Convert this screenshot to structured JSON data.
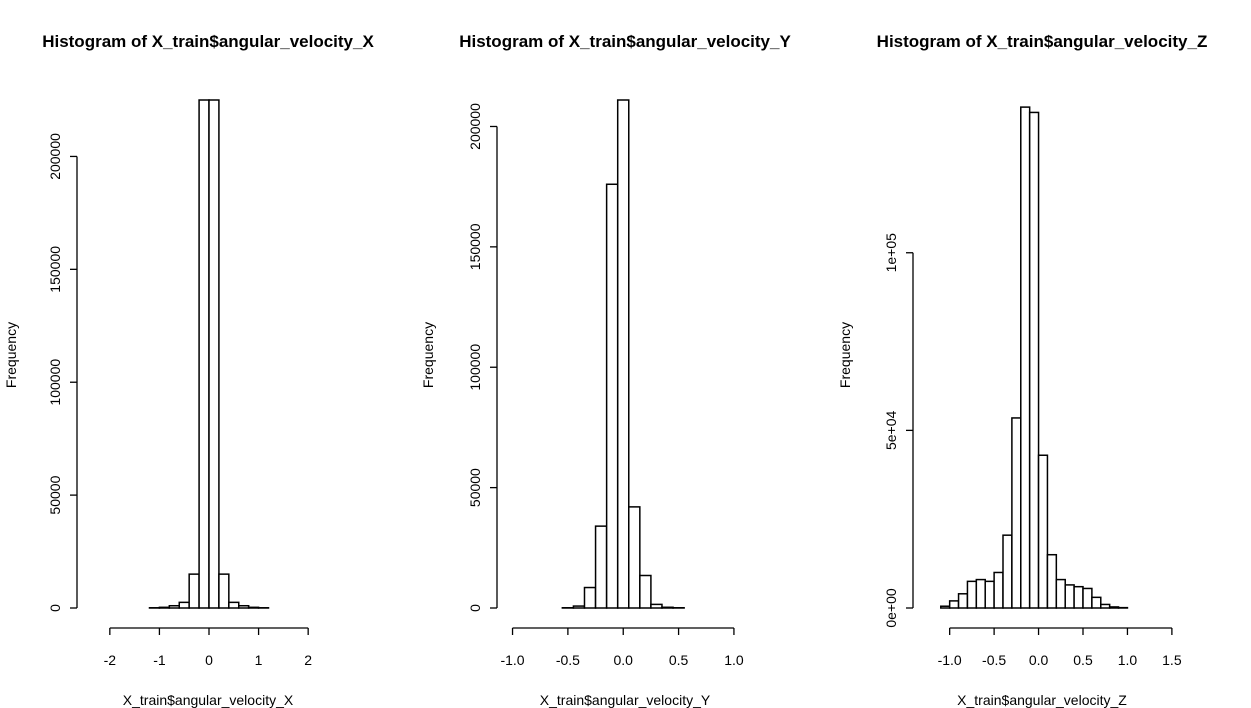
{
  "chart_data": [
    {
      "type": "bar",
      "title": "Histogram of X_train$angular_velocity_X",
      "xlabel": "X_train$angular_velocity_X",
      "ylabel": "Frequency",
      "xlim": [
        -2.4,
        2.4
      ],
      "ylim": [
        0,
        225000
      ],
      "x_ticks": [
        -2,
        -1,
        0,
        1,
        2
      ],
      "x_tick_labels": [
        "-2",
        "-1",
        "0",
        "1",
        "2"
      ],
      "y_ticks": [
        0,
        50000,
        100000,
        150000,
        200000
      ],
      "y_tick_labels": [
        "0",
        "50000",
        "100000",
        "150000",
        "200000"
      ],
      "bin_edges": [
        -2.4,
        -2.2,
        -2.0,
        -1.8,
        -1.6,
        -1.4,
        -1.2,
        -1.0,
        -0.8,
        -0.6,
        -0.4,
        -0.2,
        0.0,
        0.2,
        0.4,
        0.6,
        0.8,
        1.0,
        1.2,
        1.4,
        1.6,
        1.8,
        2.0,
        2.2,
        2.4
      ],
      "values": [
        0,
        0,
        0,
        0,
        0,
        0,
        100,
        300,
        1000,
        2500,
        15000,
        225000,
        225000,
        15000,
        2500,
        1000,
        300,
        100,
        0,
        0,
        0,
        0,
        0,
        0
      ],
      "grid": false
    },
    {
      "type": "bar",
      "title": "Histogram of X_train$angular_velocity_Y",
      "xlabel": "X_train$angular_velocity_Y",
      "ylabel": "Frequency",
      "xlim": [
        -1.05,
        1.1
      ],
      "ylim": [
        0,
        211000
      ],
      "x_ticks": [
        -1.0,
        -0.5,
        0.0,
        0.5,
        1.0
      ],
      "x_tick_labels": [
        "-1.0",
        "-0.5",
        "0.0",
        "0.5",
        "1.0"
      ],
      "y_ticks": [
        0,
        50000,
        100000,
        150000,
        200000
      ],
      "y_tick_labels": [
        "0",
        "50000",
        "100000",
        "150000",
        "200000"
      ],
      "bin_edges": [
        -1.05,
        -0.95,
        -0.85,
        -0.75,
        -0.65,
        -0.55,
        -0.45,
        -0.35,
        -0.25,
        -0.15,
        -0.05,
        0.05,
        0.15,
        0.25,
        0.35,
        0.45,
        0.55,
        0.65,
        0.75,
        0.85,
        0.95,
        1.05,
        1.1
      ],
      "values": [
        0,
        0,
        0,
        0,
        0,
        100,
        800,
        8500,
        34000,
        176000,
        211000,
        42000,
        13500,
        1500,
        300,
        100,
        0,
        0,
        0,
        0,
        0,
        0
      ],
      "grid": false
    },
    {
      "type": "bar",
      "title": "Histogram of X_train$angular_velocity_Z",
      "xlabel": "X_train$angular_velocity_Z",
      "ylabel": "Frequency",
      "xlim": [
        -1.3,
        1.4
      ],
      "ylim": [
        0,
        143000
      ],
      "x_ticks": [
        -1.0,
        -0.5,
        0.0,
        0.5,
        1.0,
        1.5
      ],
      "x_tick_labels": [
        "-1.0",
        "-0.5",
        "0.0",
        "0.5",
        "1.0",
        "1.5"
      ],
      "y_ticks": [
        0,
        50000,
        100000
      ],
      "y_tick_labels": [
        "0e+00",
        "5e+04",
        "1e+05"
      ],
      "bin_edges": [
        -1.3,
        -1.2,
        -1.1,
        -1.0,
        -0.9,
        -0.8,
        -0.7,
        -0.6,
        -0.5,
        -0.4,
        -0.3,
        -0.2,
        -0.1,
        0.0,
        0.1,
        0.2,
        0.3,
        0.4,
        0.5,
        0.6,
        0.7,
        0.8,
        0.9,
        1.0,
        1.1,
        1.2,
        1.3,
        1.4
      ],
      "values": [
        0,
        0,
        500,
        2000,
        4000,
        7500,
        8000,
        7500,
        10000,
        20500,
        53500,
        141000,
        139500,
        43000,
        15000,
        8000,
        6500,
        6000,
        5500,
        3000,
        1000,
        300,
        100,
        0,
        0,
        0,
        0
      ],
      "grid": false
    }
  ]
}
